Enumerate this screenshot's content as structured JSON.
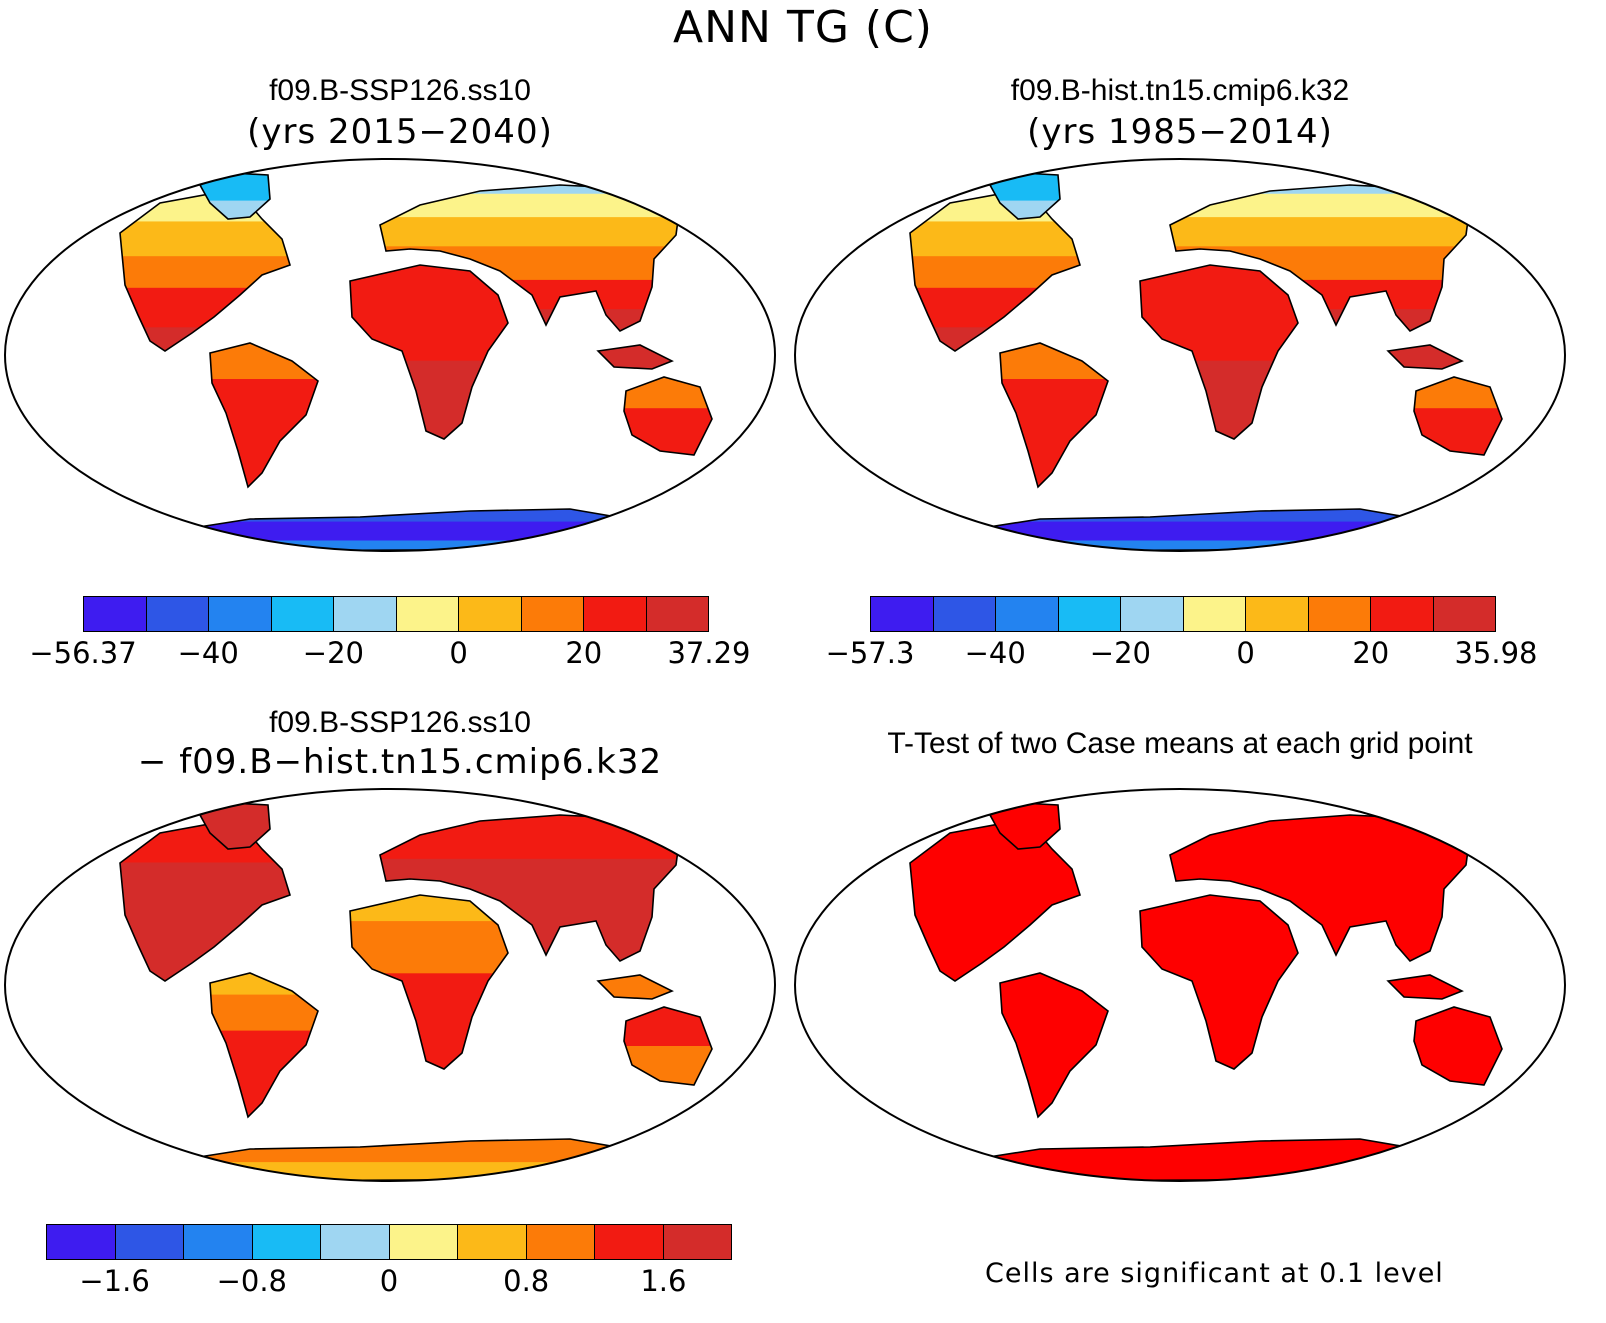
{
  "title": "ANN TG (C)",
  "panels": [
    {
      "id": "p1",
      "title": "f09.B-SSP126.ss10",
      "subtitle": "(yrs 2015−2040)",
      "scheme": "abs"
    },
    {
      "id": "p2",
      "title": "f09.B-hist.tn15.cmip6.k32",
      "subtitle": "(yrs 1985−2014)",
      "scheme": "abs"
    },
    {
      "id": "p3",
      "title": "f09.B-SSP126.ss10",
      "subtitle": "− f09.B−hist.tn15.cmip6.k32",
      "scheme": "diff"
    },
    {
      "id": "p4",
      "title": "T-Test of two Case means at each grid point",
      "subtitle": "",
      "scheme": "ttest"
    }
  ],
  "colorbars": [
    {
      "id": "cb1",
      "colors": [
        "#3e1cf0",
        "#2e56e6",
        "#2383f0",
        "#18bbf5",
        "#9fd6f2",
        "#fcf38a",
        "#fcb918",
        "#fc7b08",
        "#f21b12",
        "#d42c2a"
      ],
      "ticks": [
        "−56.37",
        "−40",
        "−20",
        "0",
        "20",
        "37.29"
      ]
    },
    {
      "id": "cb2",
      "colors": [
        "#3e1cf0",
        "#2e56e6",
        "#2383f0",
        "#18bbf5",
        "#9fd6f2",
        "#fcf38a",
        "#fcb918",
        "#fc7b08",
        "#f21b12",
        "#d42c2a"
      ],
      "ticks": [
        "−57.3",
        "−40",
        "−20",
        "0",
        "20",
        "35.98"
      ]
    },
    {
      "id": "cb3",
      "colors": [
        "#3e1cf0",
        "#2e56e6",
        "#2383f0",
        "#18bbf5",
        "#9fd6f2",
        "#fcf38a",
        "#fcb918",
        "#fc7b08",
        "#f21b12",
        "#d42c2a"
      ],
      "ticks": [
        "−1.6",
        "−0.8",
        "0",
        "0.8",
        "1.6"
      ]
    }
  ],
  "note": "Cells are significant at 0.1 level"
}
